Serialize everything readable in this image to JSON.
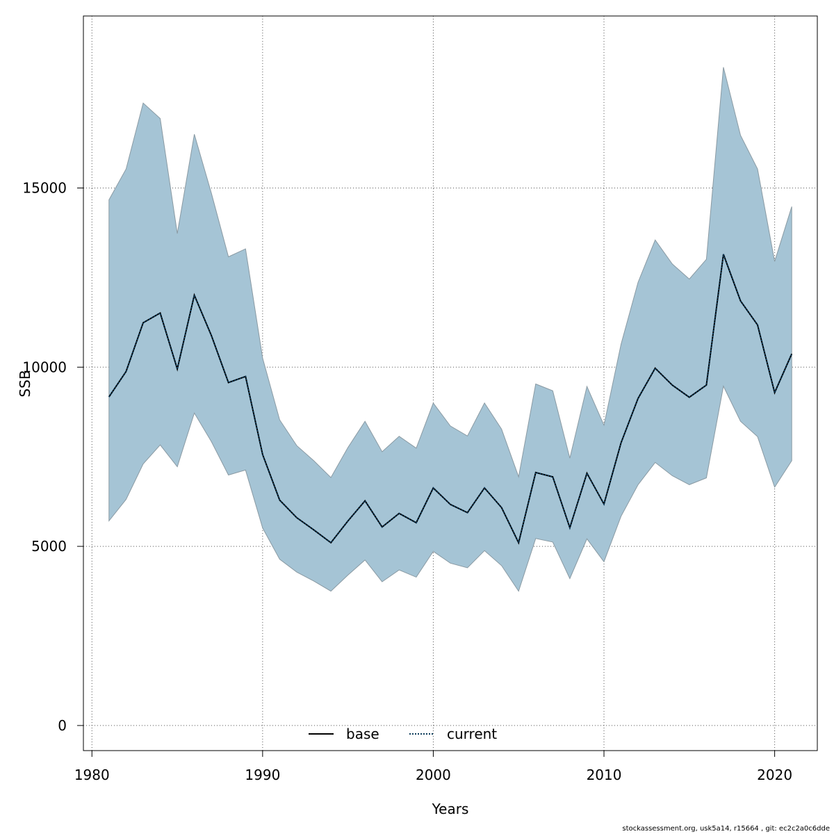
{
  "chart_data": {
    "type": "area",
    "xlabel": "Years",
    "ylabel": "SSB",
    "xlim": [
      1979.5,
      2022.5
    ],
    "ylim": [
      -700,
      19800
    ],
    "x_ticks": [
      1980,
      1990,
      2000,
      2010,
      2020
    ],
    "y_ticks": [
      0,
      5000,
      10000,
      15000
    ],
    "grid": true,
    "grid_style": "dotted",
    "legend_position": "bottom",
    "colors": {
      "band": "#a5c4d5",
      "band_border": "#8a9aa3",
      "base_line": "#000000",
      "current_line": "#0b3a5a",
      "grid": "#555555",
      "axis": "#000000"
    },
    "x": [
      1981,
      1982,
      1983,
      1984,
      1985,
      1986,
      1987,
      1988,
      1989,
      1990,
      1991,
      1992,
      1993,
      1994,
      1995,
      1996,
      1997,
      1998,
      1999,
      2000,
      2001,
      2002,
      2003,
      2004,
      2005,
      2006,
      2007,
      2008,
      2009,
      2010,
      2011,
      2012,
      2013,
      2014,
      2015,
      2016,
      2017,
      2018,
      2019,
      2020,
      2021
    ],
    "band_upper": [
      14670,
      15530,
      17370,
      16940,
      13730,
      16500,
      14850,
      13080,
      13300,
      10250,
      8530,
      7810,
      7390,
      6920,
      7760,
      8490,
      7640,
      8070,
      7740,
      9000,
      8360,
      8080,
      9000,
      8270,
      6940,
      9530,
      9340,
      7460,
      9460,
      8380,
      10640,
      12370,
      13550,
      12880,
      12460,
      13010,
      18370,
      16470,
      15530,
      12950,
      14480
    ],
    "band_lower": [
      5710,
      6310,
      7300,
      7830,
      7220,
      8720,
      7920,
      6990,
      7130,
      5510,
      4640,
      4280,
      4030,
      3750,
      4200,
      4620,
      4010,
      4340,
      4140,
      4860,
      4530,
      4400,
      4880,
      4460,
      3750,
      5220,
      5120,
      4100,
      5210,
      4570,
      5840,
      6720,
      7340,
      6970,
      6720,
      6910,
      9470,
      8490,
      8060,
      6650,
      7390
    ],
    "series": [
      {
        "name": "base",
        "style": "solid",
        "values": [
          9170,
          9880,
          11240,
          11510,
          9950,
          12010,
          10880,
          9570,
          9740,
          7560,
          6290,
          5800,
          5460,
          5100,
          5710,
          6270,
          5540,
          5920,
          5660,
          6630,
          6170,
          5940,
          6630,
          6080,
          5100,
          7060,
          6940,
          5520,
          7040,
          6180,
          7890,
          9130,
          9970,
          9500,
          9160,
          9500,
          13150,
          11850,
          11180,
          9290,
          10370
        ]
      },
      {
        "name": "current",
        "style": "dotted",
        "values": [
          9170,
          9880,
          11240,
          11510,
          9950,
          12010,
          10880,
          9570,
          9740,
          7560,
          6290,
          5800,
          5460,
          5100,
          5710,
          6270,
          5540,
          5920,
          5660,
          6630,
          6170,
          5940,
          6630,
          6080,
          5100,
          7060,
          6940,
          5520,
          7040,
          6180,
          7890,
          9130,
          9970,
          9500,
          9160,
          9500,
          13150,
          11850,
          11180,
          9290,
          10370
        ]
      }
    ]
  },
  "footer": {
    "text": "stockassessment.org, usk5a14, r15664 , git: ec2c2a0c6dde"
  }
}
